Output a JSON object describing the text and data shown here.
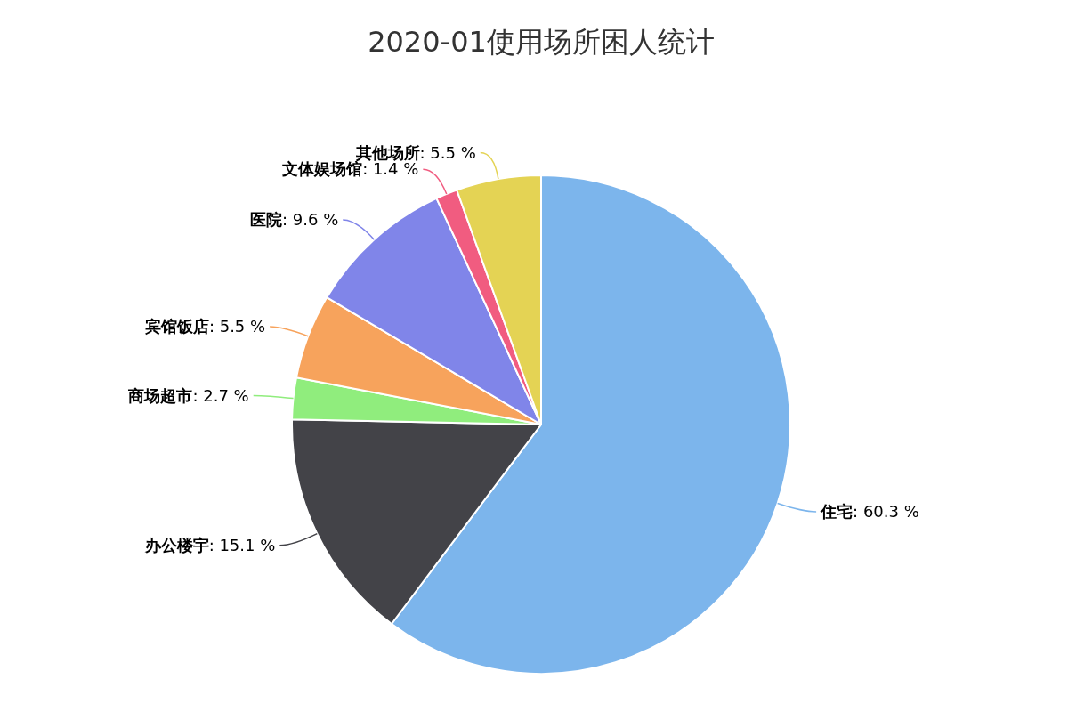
{
  "chart_data": {
    "type": "pie",
    "title": "2020-01使用场所困人统计",
    "categories": [
      "住宅",
      "办公楼宇",
      "商场超市",
      "宾馆饭店",
      "医院",
      "文体娱场馆",
      "其他场所"
    ],
    "values": [
      60.3,
      15.1,
      2.7,
      5.5,
      9.6,
      1.4,
      5.5
    ],
    "colors": [
      "#7cb5ec",
      "#434348",
      "#90ed7d",
      "#f7a35c",
      "#8085e9",
      "#f15c80",
      "#e4d354"
    ],
    "value_labels": [
      ": 60.3 %",
      ": 15.1 %",
      ": 2.7 %",
      ": 5.5 %",
      ": 9.6 %",
      ": 1.4 %",
      ": 5.5 %"
    ]
  }
}
